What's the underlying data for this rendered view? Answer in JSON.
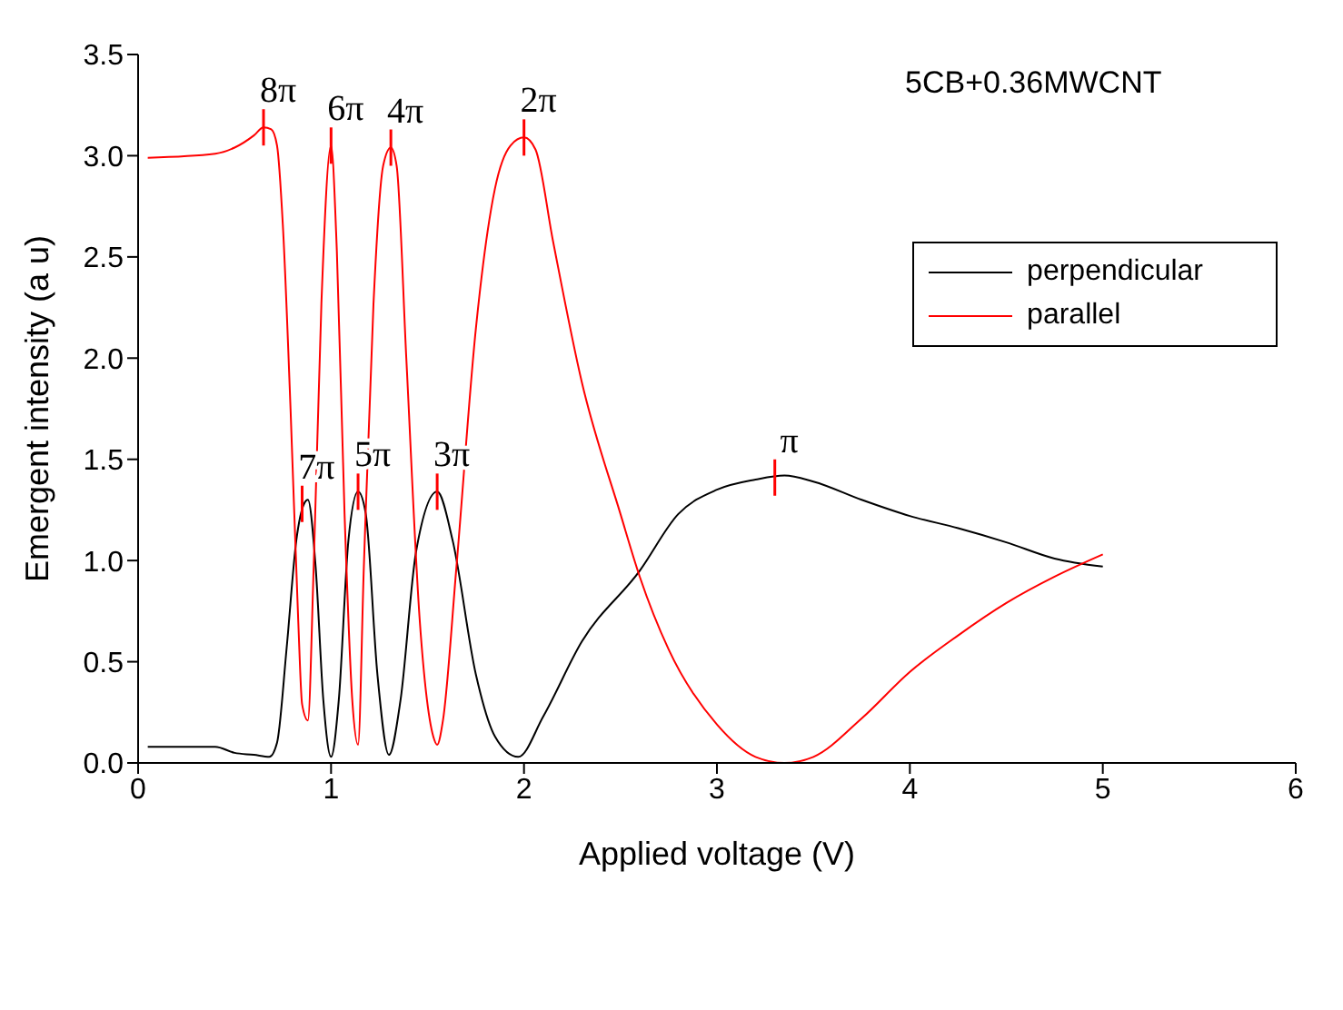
{
  "chart_data": {
    "type": "line",
    "title": "5CB+0.36MWCNT",
    "xlabel": "Applied voltage (V)",
    "ylabel": "Emergent intensity (a u)",
    "xlim": [
      0,
      6
    ],
    "xticks": [
      0,
      1,
      2,
      3,
      4,
      5,
      6
    ],
    "ylim": [
      0,
      3.5
    ],
    "yticks": [
      {
        "value": 0,
        "label": "0.0"
      },
      {
        "value": 0.5,
        "label": "0.5"
      },
      {
        "value": 1,
        "label": "1.0"
      },
      {
        "value": 1.5,
        "label": "1.5"
      },
      {
        "value": 2,
        "label": "2.0"
      },
      {
        "value": 2.5,
        "label": "2.5"
      },
      {
        "value": 3,
        "label": "3.0"
      },
      {
        "value": 3.5,
        "label": "3.5"
      }
    ],
    "grid": false,
    "legend": "top right",
    "marker": "none",
    "line_style": "solid",
    "series": [
      {
        "name": "perpendicular",
        "color": "#000000",
        "x": [
          0.05,
          0.4,
          0.5,
          0.6,
          0.68,
          0.72,
          0.77,
          0.82,
          0.86,
          0.88,
          0.92,
          0.96,
          1.0,
          1.04,
          1.09,
          1.14,
          1.18,
          1.24,
          1.3,
          1.36,
          1.44,
          1.55,
          1.63,
          1.75,
          1.85,
          1.97,
          2.1,
          2.3,
          2.6,
          2.8,
          3.0,
          3.2,
          3.35,
          3.5,
          3.75,
          4.0,
          4.25,
          4.5,
          4.75,
          5.0
        ],
        "values": [
          0.08,
          0.08,
          0.05,
          0.04,
          0.03,
          0.1,
          0.57,
          1.1,
          1.28,
          1.3,
          0.97,
          0.31,
          0.03,
          0.31,
          1.1,
          1.34,
          1.23,
          0.44,
          0.04,
          0.31,
          1.04,
          1.34,
          1.1,
          0.44,
          0.13,
          0.03,
          0.23,
          0.6,
          0.95,
          1.23,
          1.35,
          1.4,
          1.42,
          1.39,
          1.3,
          1.22,
          1.16,
          1.09,
          1.01,
          0.97
        ]
      },
      {
        "name": "parallel",
        "color": "#ff0000",
        "x": [
          0.05,
          0.4,
          0.5,
          0.6,
          0.65,
          0.69,
          0.72,
          0.75,
          0.79,
          0.83,
          0.85,
          0.88,
          0.91,
          0.95,
          1.0,
          1.03,
          1.07,
          1.11,
          1.14,
          1.17,
          1.22,
          1.27,
          1.31,
          1.34,
          1.39,
          1.46,
          1.53,
          1.55,
          1.58,
          1.65,
          1.75,
          1.85,
          1.93,
          2.0,
          2.06,
          2.15,
          2.3,
          2.5,
          2.6,
          2.75,
          3.0,
          3.2,
          3.35,
          3.5,
          3.75,
          4.0,
          4.25,
          4.5,
          4.75,
          5.0
        ],
        "values": [
          2.99,
          3.01,
          3.04,
          3.1,
          3.14,
          3.13,
          3.05,
          2.66,
          1.75,
          0.7,
          0.29,
          0.21,
          0.97,
          2.27,
          3.05,
          2.53,
          1.23,
          0.31,
          0.09,
          0.97,
          2.27,
          2.95,
          3.04,
          2.95,
          2.0,
          0.7,
          0.13,
          0.09,
          0.21,
          0.97,
          2.14,
          2.84,
          3.05,
          3.09,
          3.03,
          2.58,
          1.88,
          1.23,
          0.92,
          0.56,
          0.19,
          0.03,
          0.0,
          0.03,
          0.22,
          0.45,
          0.63,
          0.79,
          0.92,
          1.03
        ]
      }
    ],
    "annotations": [
      {
        "text": "8π",
        "x": 0.65,
        "y": 3.14
      },
      {
        "text": "6π",
        "x": 1.0,
        "y": 3.05
      },
      {
        "text": "4π",
        "x": 1.31,
        "y": 3.04
      },
      {
        "text": "2π",
        "x": 2.0,
        "y": 3.09
      },
      {
        "text": "7π",
        "x": 0.85,
        "y": 1.28
      },
      {
        "text": "5π",
        "x": 1.14,
        "y": 1.34
      },
      {
        "text": "3π",
        "x": 1.55,
        "y": 1.34
      },
      {
        "text": "π",
        "x": 3.3,
        "y": 1.41
      }
    ]
  }
}
